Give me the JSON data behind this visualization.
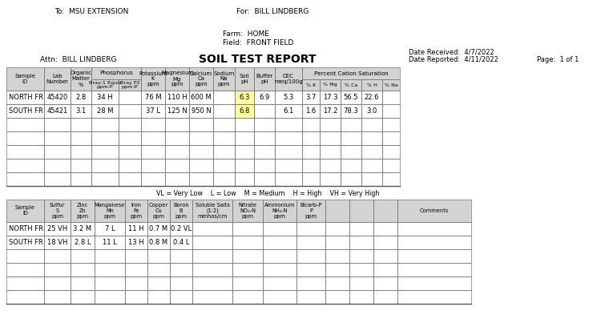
{
  "header": {
    "to": "To:  MSU EXTENSION",
    "for": "For:  BILL LINDBERG",
    "farm": "Farm:  HOME",
    "field": "Field:  FRONT FIELD",
    "attn": "Attn:  BILL LINDBERG",
    "title": "SOIL TEST REPORT",
    "date_received": "Date Received:  4/7/2022",
    "date_reported": "Date Reported:  4/11/2022",
    "page": "Page:  1 of 1"
  },
  "table1_headers_top": [
    {
      "label": "Sample\nID",
      "cols": [
        0
      ],
      "span_both": true
    },
    {
      "label": "Lab\nNumber",
      "cols": [
        1
      ],
      "span_both": true
    },
    {
      "label": "Organic\nMatter\n%",
      "cols": [
        2
      ],
      "span_both": true
    },
    {
      "label": "Phosphorus",
      "cols": [
        3,
        4
      ],
      "span_both": false
    },
    {
      "label": "Potassium\nK\nppm",
      "cols": [
        5
      ],
      "span_both": true
    },
    {
      "label": "Magnesium\nMg\nppm",
      "cols": [
        6
      ],
      "span_both": true
    },
    {
      "label": "Calcium\nCa\nppm",
      "cols": [
        7
      ],
      "span_both": true
    },
    {
      "label": "Sodium\nNa\nppm",
      "cols": [
        8
      ],
      "span_both": true
    },
    {
      "label": "Soil\npH",
      "cols": [
        9
      ],
      "span_both": true
    },
    {
      "label": "Buffer\npH",
      "cols": [
        10
      ],
      "span_both": true
    },
    {
      "label": "CEC\nmeq/100g",
      "cols": [
        11
      ],
      "span_both": true
    },
    {
      "label": "Percent Cation Saturation",
      "cols": [
        12,
        13,
        14,
        15,
        16
      ],
      "span_both": false
    }
  ],
  "table1_headers_sub": [
    "",
    "",
    "",
    "Bray-1 Equiv\nppm-P",
    "Bray P2\nppm-P",
    "",
    "",
    "",
    "",
    "",
    "",
    "",
    "% K",
    "% Mg",
    "% Ca",
    "% H",
    "% Na"
  ],
  "table1_col_widths": [
    47,
    33,
    26,
    34,
    28,
    30,
    30,
    30,
    27,
    24,
    26,
    34,
    22,
    26,
    26,
    26,
    22
  ],
  "table1_rows": [
    [
      "NORTH FR",
      "45420",
      "2.8",
      "34 H",
      "",
      "76 M",
      "110 H",
      "600 M",
      "",
      "6.3",
      "6.9",
      "5.3",
      "3.7",
      "17.3",
      "56.5",
      "22.6",
      ""
    ],
    [
      "SOUTH FR",
      "45421",
      "3.1",
      "28 M",
      "",
      "37 L",
      "125 N",
      "950 N",
      "",
      "6.8",
      "",
      "6.1",
      "1.6",
      "17.2",
      "78.3",
      "3.0",
      ""
    ]
  ],
  "table1_highlight_cells": [
    [
      0,
      9
    ],
    [
      1,
      9
    ]
  ],
  "table1_highlight_color": "#FFFF99",
  "table1_legend": "VL = Very Low    L = Low    M = Medium    H = High    VH = Very High",
  "table2_headers": [
    "Sample\nID",
    "Sulfur\nS\nppm",
    "Zinc\nZn\nppm",
    "Manganese\nMn\nppm",
    "Iron\nFe\nppm",
    "Copper\nCu\nppm",
    "Boron\nB\nppm",
    "Soluble Salts\n(1:2)\nmmhos/cm",
    "Nitrate\nNO₃-N\nppm",
    "Ammonium\nNH₄-N\nppm",
    "Bicarb-P\nP\nppm",
    "",
    "",
    "",
    "Comments"
  ],
  "table2_col_widths": [
    47,
    33,
    30,
    38,
    28,
    28,
    28,
    50,
    38,
    42,
    36,
    30,
    30,
    30,
    92
  ],
  "table2_rows": [
    [
      "NORTH FR",
      "25 VH",
      "3.2 M",
      "7 L",
      "11 H",
      "0.7 M",
      "0.2 VL",
      "",
      "",
      "",
      "",
      "",
      "",
      "",
      ""
    ],
    [
      "SOUTH FR",
      "18 VH",
      "2.8 L",
      "11 L",
      "13 H",
      "0.8 M",
      "0.4 L",
      "",
      "",
      "",
      "",
      "",
      "",
      "",
      ""
    ]
  ],
  "header_bg": "#D3D3D3",
  "bg_color": "#FFFFFF",
  "border_color": "#777777"
}
